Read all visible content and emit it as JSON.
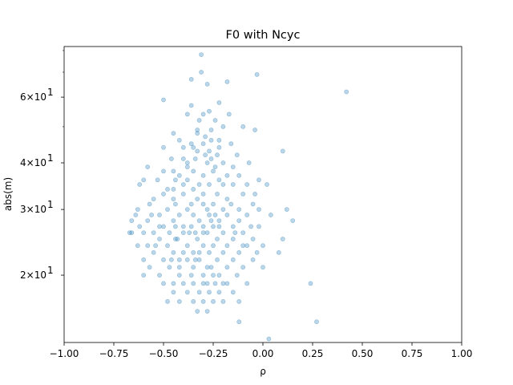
{
  "chart_data": {
    "type": "scatter",
    "title": "F0 with Ncyc",
    "xlabel": "ρ",
    "ylabel": "abs(m)",
    "xlim": [
      -1.0,
      1.0
    ],
    "ylim": [
      13.2,
      82
    ],
    "yscale": "log",
    "grid": false,
    "legend": "none",
    "marker_color": "#1f77b4",
    "marker_alpha": 0.3,
    "x_ticks": [
      -1.0,
      -0.75,
      -0.5,
      -0.25,
      0.0,
      0.25,
      0.5,
      0.75,
      1.0
    ],
    "x_tick_labels": [
      "−1.00",
      "−0.75",
      "−0.50",
      "−0.25",
      "0.00",
      "0.25",
      "0.50",
      "0.75",
      "1.00"
    ],
    "y_major_ticks": [
      20,
      30,
      40,
      60
    ],
    "y_tick_labels": [
      {
        "base": "2×10",
        "exp": "1"
      },
      {
        "base": "3×10",
        "exp": "1"
      },
      {
        "base": "4×10",
        "exp": "1"
      },
      {
        "base": "6×10",
        "exp": "1"
      }
    ],
    "y_minor_ticks": [
      50,
      70,
      80
    ],
    "points": [
      [
        -0.31,
        78
      ],
      [
        -0.31,
        70
      ],
      [
        -0.36,
        67
      ],
      [
        -0.28,
        65
      ],
      [
        -0.18,
        66
      ],
      [
        -0.03,
        69
      ],
      [
        0.42,
        62
      ],
      [
        -0.5,
        59
      ],
      [
        -0.36,
        57
      ],
      [
        -0.22,
        58
      ],
      [
        -0.27,
        55
      ],
      [
        -0.38,
        54
      ],
      [
        -0.3,
        54
      ],
      [
        -0.17,
        54
      ],
      [
        -0.24,
        52
      ],
      [
        -0.32,
        52
      ],
      [
        -0.2,
        50
      ],
      [
        -0.33,
        49
      ],
      [
        -0.26,
        49
      ],
      [
        -0.45,
        48
      ],
      [
        -0.1,
        50
      ],
      [
        -0.04,
        49
      ],
      [
        -0.29,
        47
      ],
      [
        -0.22,
        46
      ],
      [
        -0.36,
        45
      ],
      [
        -0.3,
        45
      ],
      [
        -0.5,
        44
      ],
      [
        -0.16,
        45
      ],
      [
        -0.33,
        43
      ],
      [
        -0.27,
        43
      ],
      [
        -0.23,
        42
      ],
      [
        -0.4,
        41
      ],
      [
        -0.34,
        41
      ],
      [
        -0.46,
        41
      ],
      [
        -0.26,
        41
      ],
      [
        -0.13,
        42
      ],
      [
        0.1,
        43
      ],
      [
        -0.28,
        40
      ],
      [
        -0.2,
        40
      ],
      [
        -0.38,
        40
      ],
      [
        -0.07,
        40
      ],
      [
        -0.58,
        39
      ],
      [
        -0.5,
        38
      ],
      [
        -0.45,
        38
      ],
      [
        -0.35,
        38
      ],
      [
        -0.25,
        38
      ],
      [
        -0.18,
        37
      ],
      [
        -0.3,
        37
      ],
      [
        -0.42,
        37
      ],
      [
        -0.6,
        36
      ],
      [
        -0.12,
        37
      ],
      [
        -0.02,
        36
      ],
      [
        -0.38,
        36
      ],
      [
        -0.27,
        35
      ],
      [
        -0.2,
        35
      ],
      [
        -0.53,
        36
      ],
      [
        -0.35,
        34
      ],
      [
        -0.45,
        34
      ],
      [
        -0.15,
        35
      ],
      [
        0.02,
        35
      ],
      [
        -0.62,
        35
      ],
      [
        -0.3,
        33
      ],
      [
        -0.23,
        33
      ],
      [
        -0.4,
        33
      ],
      [
        -0.5,
        33
      ],
      [
        -0.55,
        32
      ],
      [
        -0.1,
        33
      ],
      [
        -0.18,
        32
      ],
      [
        -0.33,
        32
      ],
      [
        -0.45,
        32
      ],
      [
        -0.57,
        31
      ],
      [
        -0.25,
        31
      ],
      [
        -0.05,
        31
      ],
      [
        -0.38,
        30
      ],
      [
        -0.28,
        30
      ],
      [
        -0.48,
        30
      ],
      [
        -0.12,
        30
      ],
      [
        -0.63,
        30
      ],
      [
        -0.2,
        30
      ],
      [
        0.12,
        30
      ],
      [
        -0.35,
        29
      ],
      [
        -0.42,
        29
      ],
      [
        -0.52,
        29
      ],
      [
        -0.27,
        29
      ],
      [
        -0.18,
        29
      ],
      [
        -0.08,
        29
      ],
      [
        -0.66,
        28
      ],
      [
        -0.58,
        28
      ],
      [
        -0.45,
        28
      ],
      [
        -0.32,
        28
      ],
      [
        -0.22,
        28
      ],
      [
        -0.12,
        28
      ],
      [
        0.04,
        29
      ],
      [
        0.15,
        28
      ],
      [
        -0.62,
        27
      ],
      [
        -0.5,
        27
      ],
      [
        -0.4,
        27
      ],
      [
        -0.3,
        27
      ],
      [
        -0.25,
        27
      ],
      [
        -0.15,
        27
      ],
      [
        -0.02,
        27
      ],
      [
        -0.55,
        26
      ],
      [
        -0.47,
        26
      ],
      [
        -0.37,
        26
      ],
      [
        -0.28,
        26
      ],
      [
        -0.2,
        26
      ],
      [
        -0.1,
        26
      ],
      [
        -0.67,
        26
      ],
      [
        -0.6,
        26
      ],
      [
        -0.43,
        25
      ],
      [
        -0.33,
        25
      ],
      [
        -0.23,
        25
      ],
      [
        -0.15,
        25
      ],
      [
        -0.05,
        25
      ],
      [
        0.1,
        25
      ],
      [
        -0.52,
        25
      ],
      [
        -0.58,
        24
      ],
      [
        -0.48,
        24
      ],
      [
        -0.38,
        24
      ],
      [
        -0.3,
        24
      ],
      [
        -0.25,
        24
      ],
      [
        -0.18,
        24
      ],
      [
        -0.08,
        24
      ],
      [
        0.0,
        24
      ],
      [
        -0.63,
        24
      ],
      [
        -0.45,
        23
      ],
      [
        -0.35,
        23
      ],
      [
        -0.27,
        23
      ],
      [
        -0.2,
        23
      ],
      [
        -0.12,
        23
      ],
      [
        -0.55,
        23
      ],
      [
        -0.03,
        23
      ],
      [
        0.08,
        23
      ],
      [
        -0.6,
        22
      ],
      [
        -0.5,
        22
      ],
      [
        -0.42,
        22
      ],
      [
        -0.32,
        22
      ],
      [
        -0.23,
        22
      ],
      [
        -0.15,
        22
      ],
      [
        -0.05,
        22
      ],
      [
        -0.38,
        22
      ],
      [
        -0.28,
        21
      ],
      [
        -0.18,
        21
      ],
      [
        -0.47,
        21
      ],
      [
        -0.57,
        21
      ],
      [
        -0.1,
        21
      ],
      [
        0.0,
        21
      ],
      [
        -0.35,
        21
      ],
      [
        -0.22,
        20
      ],
      [
        -0.42,
        20
      ],
      [
        -0.52,
        20
      ],
      [
        -0.3,
        20
      ],
      [
        -0.13,
        20
      ],
      [
        -0.6,
        20
      ],
      [
        -0.25,
        20
      ],
      [
        -0.45,
        19
      ],
      [
        -0.35,
        19
      ],
      [
        -0.18,
        19
      ],
      [
        -0.28,
        19
      ],
      [
        -0.08,
        19
      ],
      [
        -0.4,
        19
      ],
      [
        0.24,
        19
      ],
      [
        -0.5,
        19
      ],
      [
        -0.22,
        18
      ],
      [
        -0.32,
        18
      ],
      [
        -0.15,
        18
      ],
      [
        -0.45,
        18
      ],
      [
        -0.27,
        18
      ],
      [
        -0.38,
        18
      ],
      [
        -0.2,
        17
      ],
      [
        -0.48,
        17
      ],
      [
        -0.3,
        17
      ],
      [
        -0.35,
        17
      ],
      [
        -0.25,
        17
      ],
      [
        -0.12,
        17
      ],
      [
        -0.42,
        17
      ],
      [
        -0.28,
        16
      ],
      [
        -0.33,
        16
      ],
      [
        0.27,
        15
      ],
      [
        -0.12,
        15
      ],
      [
        0.03,
        13.5
      ],
      [
        -0.33,
        48
      ],
      [
        -0.42,
        46
      ],
      [
        -0.26,
        46
      ],
      [
        -0.35,
        44
      ],
      [
        -0.4,
        44
      ],
      [
        -0.22,
        44
      ],
      [
        -0.29,
        42
      ],
      [
        -0.38,
        39
      ],
      [
        -0.24,
        39
      ],
      [
        -0.15,
        39
      ],
      [
        -0.44,
        36
      ],
      [
        -0.22,
        36
      ],
      [
        -0.32,
        35
      ],
      [
        -0.4,
        35
      ],
      [
        -0.48,
        34
      ],
      [
        -0.36,
        31
      ],
      [
        -0.3,
        31
      ],
      [
        -0.44,
        31
      ],
      [
        -0.16,
        31
      ],
      [
        -0.24,
        29
      ],
      [
        -0.4,
        26
      ],
      [
        -0.34,
        26
      ],
      [
        -0.26,
        28
      ],
      [
        -0.36,
        27
      ],
      [
        -0.44,
        27
      ],
      [
        -0.3,
        26
      ],
      [
        -0.22,
        27
      ],
      [
        -0.4,
        23
      ],
      [
        -0.34,
        22
      ],
      [
        -0.26,
        21
      ],
      [
        -0.3,
        19
      ],
      [
        -0.42,
        21
      ],
      [
        -0.24,
        19
      ],
      [
        -0.36,
        20
      ],
      [
        -0.46,
        22
      ],
      [
        -0.2,
        19
      ],
      [
        -0.32,
        23
      ],
      [
        -0.44,
        25
      ],
      [
        -0.52,
        27
      ],
      [
        -0.54,
        24
      ],
      [
        -0.1,
        24
      ],
      [
        -0.06,
        27
      ],
      [
        -0.64,
        29
      ],
      [
        -0.66,
        26
      ],
      [
        -0.56,
        29
      ],
      [
        -0.14,
        26
      ],
      [
        -0.04,
        33
      ],
      [
        -0.08,
        35
      ],
      [
        -0.02,
        30
      ]
    ]
  }
}
